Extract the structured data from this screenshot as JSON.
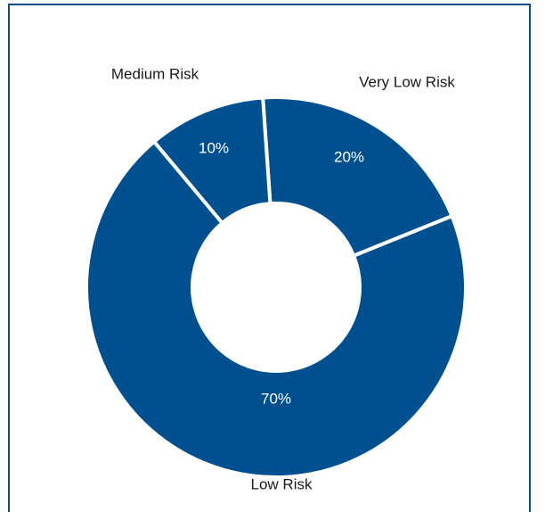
{
  "chart_data": {
    "type": "pie",
    "variant": "donut",
    "color": "#00508f",
    "border_color": "#0a4f8c",
    "slices": [
      {
        "label": "Very Low Risk",
        "value": 20,
        "value_label": "20%"
      },
      {
        "label": "Low Risk",
        "value": 70,
        "value_label": "70%"
      },
      {
        "label": "Medium Risk",
        "value": 10,
        "value_label": "10%"
      }
    ]
  }
}
